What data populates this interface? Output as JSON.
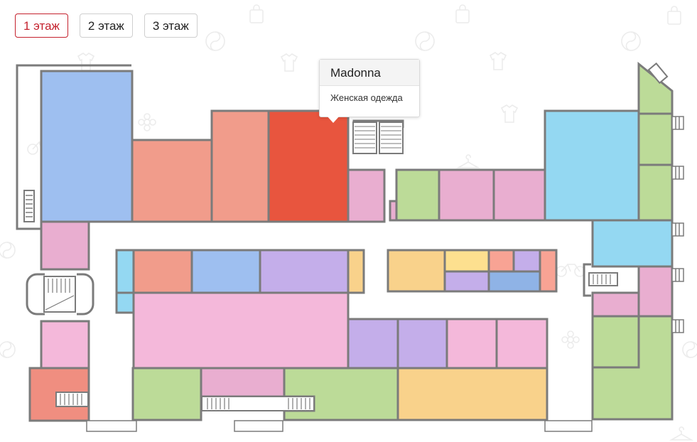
{
  "floor_tabs": [
    {
      "label": "1 этаж",
      "active": true
    },
    {
      "label": "2 этаж",
      "active": false
    },
    {
      "label": "3 этаж",
      "active": false
    }
  ],
  "tooltip": {
    "shop_name": "Madonna",
    "category": "Женская одежда"
  },
  "colors": {
    "wall": "#7b7b7b",
    "active_tab": "#c4212d",
    "highlighted_shop": "#e8553e",
    "pattern_icon": "#ececec"
  },
  "map": {
    "highlighted_shop": "Madonna",
    "background_icons": [
      "shopping-bag-icon",
      "yin-yang-icon",
      "shirt-icon",
      "hanger-icon",
      "bicycle-icon",
      "flower-icon"
    ]
  }
}
